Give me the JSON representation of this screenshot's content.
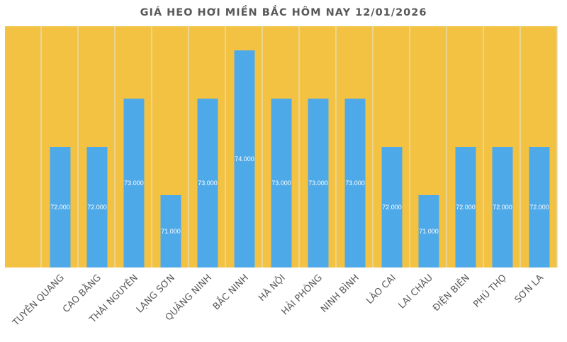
{
  "chart_data": {
    "type": "bar",
    "title": "GIÁ HEO HƠI MIỀN BẮC HÔM NAY 12/01/2026",
    "xlabel": "",
    "ylabel": "",
    "categories": [
      "TUYÊN QUANG",
      "CAO BẰNG",
      "THÁI NGUYÊN",
      "LẠNG SƠN",
      "QUẢNG NINH",
      "BẮC NINH",
      "HÀ NỘI",
      "HẢI PHÒNG",
      "NINH BÌNH",
      "LÀO CAI",
      "LAI CHÂU",
      "ĐIỆN BIÊN",
      "PHÚ THỌ",
      "SƠN LA"
    ],
    "values": [
      72000,
      72000,
      73000,
      71000,
      73000,
      74000,
      73000,
      73000,
      73000,
      72000,
      71000,
      72000,
      72000,
      72000
    ],
    "data_labels": [
      "72.000",
      "72.000",
      "73.000",
      "71.000",
      "73.000",
      "74.000",
      "73.000",
      "73.000",
      "73.000",
      "72.000",
      "71.000",
      "72.000",
      "72.000",
      "72.000"
    ],
    "ylim": [
      69500,
      74500
    ],
    "grid": "vertical",
    "legend": "none",
    "colors": {
      "bar": "#4EA9E8",
      "plot_background": "#F4C243",
      "grid": "#E8D9A8",
      "text": "#595959"
    }
  }
}
